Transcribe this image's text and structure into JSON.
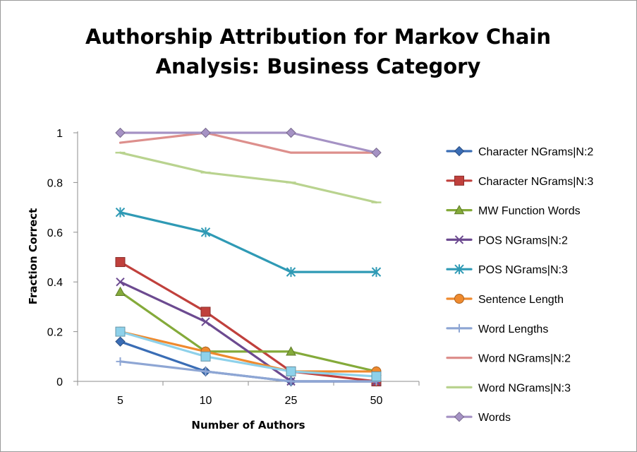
{
  "chart_data": {
    "type": "line",
    "title_lines": [
      "Authorship Attribution for Markov Chain",
      "Analysis: Business Category"
    ],
    "xlabel": "Number of Authors",
    "ylabel": "Fraction Correct",
    "categories": [
      "5",
      "10",
      "25",
      "50"
    ],
    "ylim": [
      0,
      1
    ],
    "yticks": [
      "0",
      "0.2",
      "0.4",
      "0.6",
      "0.8",
      "1"
    ],
    "grid": false,
    "legend_position": "right",
    "series": [
      {
        "name": "Character NGrams|N:2",
        "color": "#3a6db5",
        "marker": "diamond",
        "values": [
          0.16,
          0.04,
          0.0,
          0.0
        ]
      },
      {
        "name": "Character NGrams|N:3",
        "color": "#c0403c",
        "marker": "square",
        "values": [
          0.48,
          0.28,
          0.04,
          0.0
        ]
      },
      {
        "name": "MW Function Words",
        "color": "#84aa3a",
        "marker": "triangle",
        "values": [
          0.36,
          0.12,
          0.12,
          0.04
        ]
      },
      {
        "name": "POS NGrams|N:2",
        "color": "#6c4a90",
        "marker": "x",
        "values": [
          0.4,
          0.24,
          0.0,
          0.0
        ]
      },
      {
        "name": "POS NGrams|N:3",
        "color": "#2f9ab5",
        "marker": "asterisk",
        "values": [
          0.68,
          0.6,
          0.44,
          0.44
        ]
      },
      {
        "name": "Sentence Length",
        "color": "#ef8a2e",
        "marker": "circle",
        "values": [
          0.2,
          0.12,
          0.04,
          0.04
        ]
      },
      {
        "name": "Word Lengths",
        "color": "#8ea6d4",
        "marker": "plus",
        "values": [
          0.08,
          0.04,
          0.0,
          0.0
        ]
      },
      {
        "name": "Word NGrams|N:2",
        "color": "#dd8f8c",
        "marker": "none",
        "values": [
          0.96,
          1.0,
          0.92,
          0.92
        ]
      },
      {
        "name": "Word NGrams|N:3",
        "color": "#b9d38f",
        "marker": "dash",
        "values": [
          0.92,
          0.84,
          0.8,
          0.72
        ]
      },
      {
        "name": "Words",
        "color": "#a592c4",
        "marker": "diamond",
        "values": [
          1.0,
          1.0,
          1.0,
          0.92
        ]
      },
      {
        "name": "",
        "color": "#8ed1ea",
        "marker": "square",
        "values": [
          0.2,
          0.1,
          0.04,
          0.02
        ]
      }
    ]
  }
}
